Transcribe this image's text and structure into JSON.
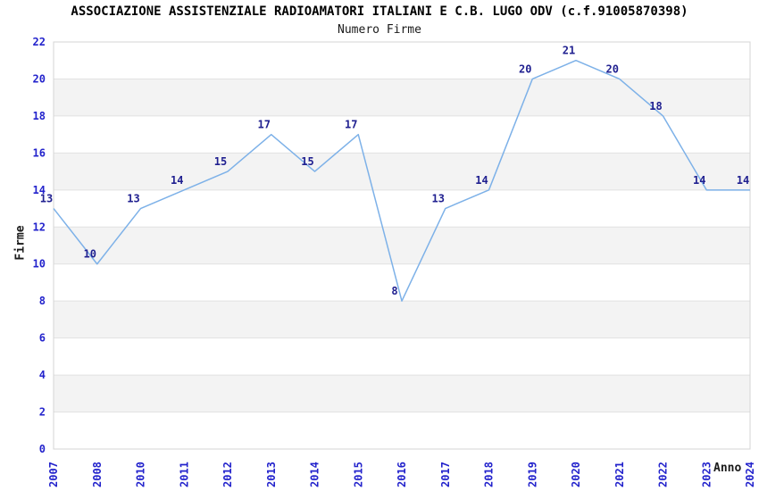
{
  "chart_data": {
    "type": "line",
    "title": "ASSOCIAZIONE ASSISTENZIALE RADIOAMATORI ITALIANI E C.B. LUGO ODV (c.f.91005870398)",
    "subtitle": "Numero Firme",
    "xlabel": "Anno",
    "ylabel": "Firme",
    "categories": [
      "2007",
      "2008",
      "2010",
      "2011",
      "2012",
      "2013",
      "2014",
      "2015",
      "2016",
      "2017",
      "2018",
      "2019",
      "2020",
      "2021",
      "2022",
      "2023",
      "2024"
    ],
    "values": [
      13,
      10,
      13,
      14,
      15,
      17,
      15,
      17,
      8,
      13,
      14,
      20,
      21,
      20,
      18,
      14,
      14
    ],
    "ylim": [
      0,
      22
    ],
    "ytick_step": 2,
    "yticks": [
      0,
      2,
      4,
      6,
      8,
      10,
      12,
      14,
      16,
      18,
      20,
      22
    ],
    "grid": true,
    "legend": "none",
    "band_fill_ranges": [
      [
        2,
        4
      ],
      [
        6,
        8
      ],
      [
        10,
        12
      ],
      [
        14,
        16
      ],
      [
        18,
        20
      ]
    ],
    "colors": {
      "line": "#7db1e8",
      "tick_label": "#2323cc",
      "data_label": "#202090",
      "band": "#f3f3f3",
      "gridline": "#e2e2e2",
      "plot_border": "#d4d4d4",
      "title": "#000000",
      "axis_title": "#1a1a1a"
    }
  }
}
